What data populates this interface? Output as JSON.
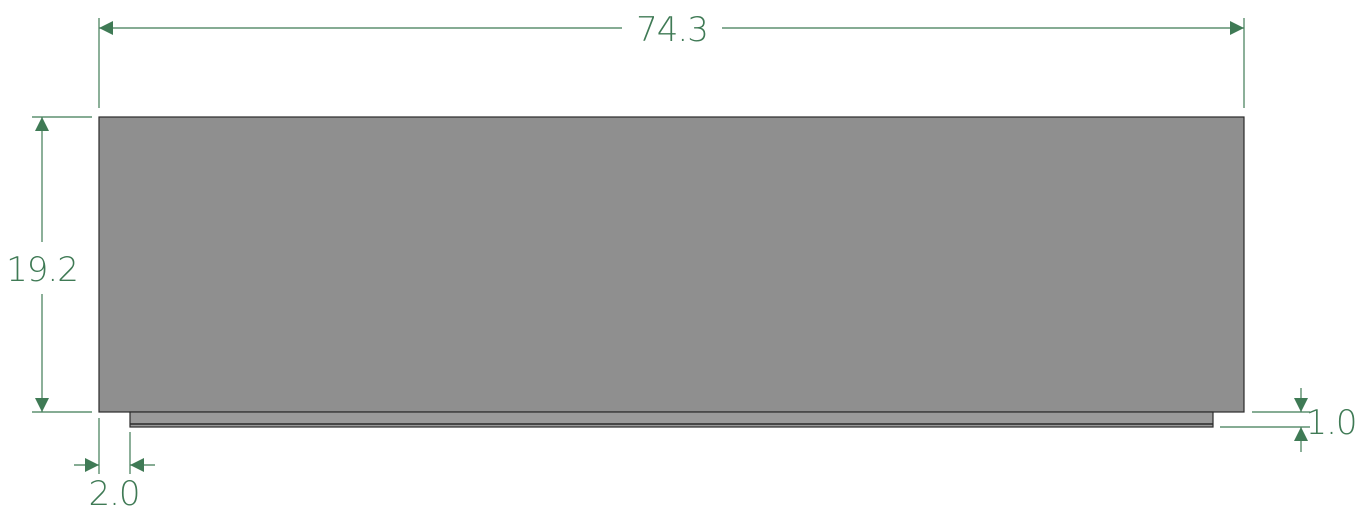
{
  "dimensions": {
    "width": "74.3",
    "height": "19.2",
    "offset": "2.0",
    "thickness": "1.0"
  },
  "colors": {
    "dimension": "#3f7a55",
    "body_fill": "#8f8f8f",
    "base_fill": "#9a9a9a",
    "outline": "#2b2b2b"
  }
}
